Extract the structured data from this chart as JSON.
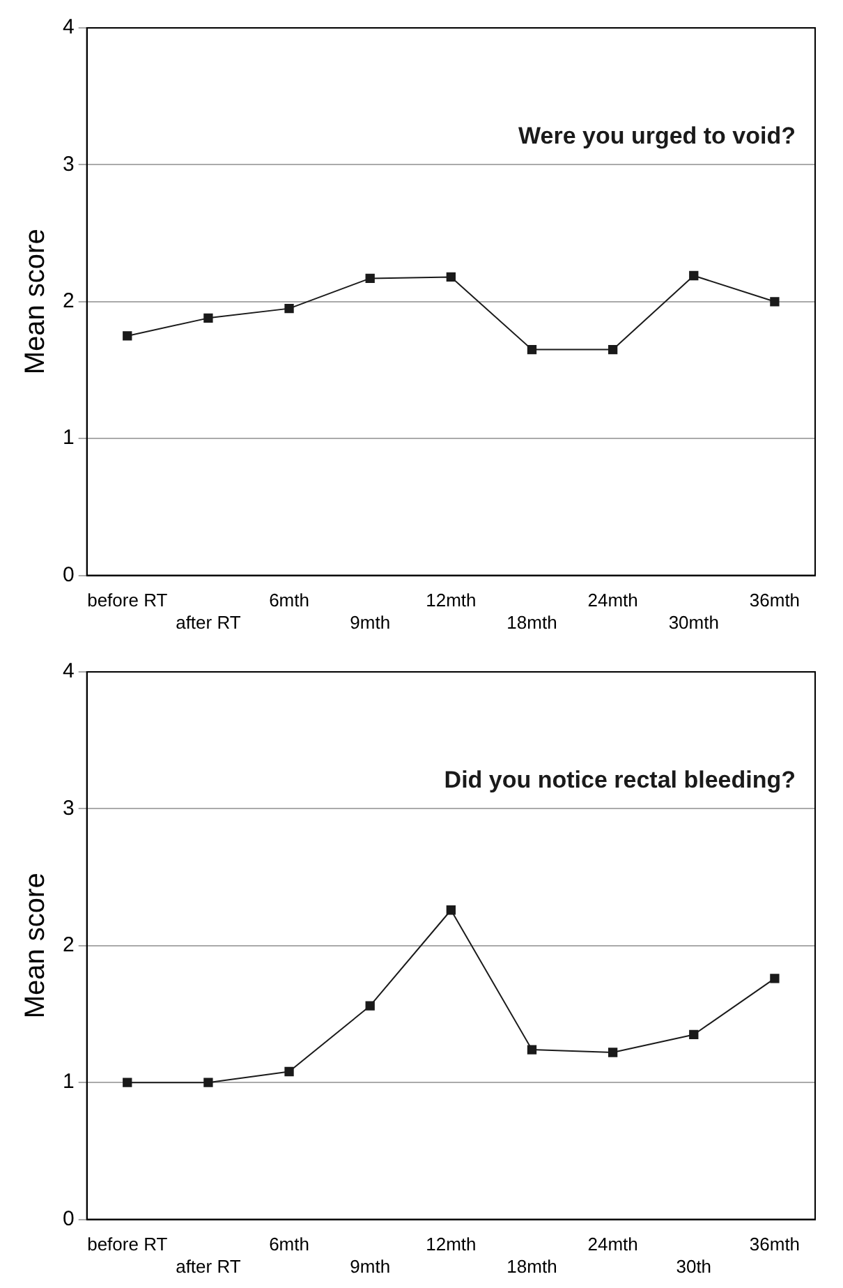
{
  "chart_data": [
    {
      "type": "line",
      "title": "Were you urged to void?",
      "ylabel": "Mean score",
      "categories": [
        "before RT",
        "after RT",
        "6mth",
        "9mth",
        "12mth",
        "18mth",
        "24mth",
        "30mth",
        "36mth"
      ],
      "series": [
        {
          "color": "#1a1a1a",
          "values": [
            1.75,
            1.88,
            1.95,
            2.17,
            2.18,
            1.65,
            1.65,
            2.19,
            2.0
          ]
        }
      ],
      "ylim": [
        0,
        4
      ],
      "yticks": [
        0,
        1,
        2,
        3,
        4
      ],
      "grid": "y",
      "marker": "square",
      "line_style": "solid"
    },
    {
      "type": "line",
      "title": "Did you notice rectal bleeding?",
      "ylabel": "Mean score",
      "categories": [
        "before RT",
        "after RT",
        "6mth",
        "9mth",
        "12mth",
        "18mth",
        "24mth",
        "30th",
        "36mth"
      ],
      "series": [
        {
          "color": "#1a1a1a",
          "values": [
            1.0,
            1.0,
            1.08,
            1.56,
            2.26,
            1.24,
            1.22,
            1.35,
            1.76
          ]
        }
      ],
      "ylim": [
        0,
        4
      ],
      "yticks": [
        0,
        1,
        2,
        3,
        4
      ],
      "grid": "y",
      "marker": "square",
      "line_style": "solid"
    }
  ]
}
